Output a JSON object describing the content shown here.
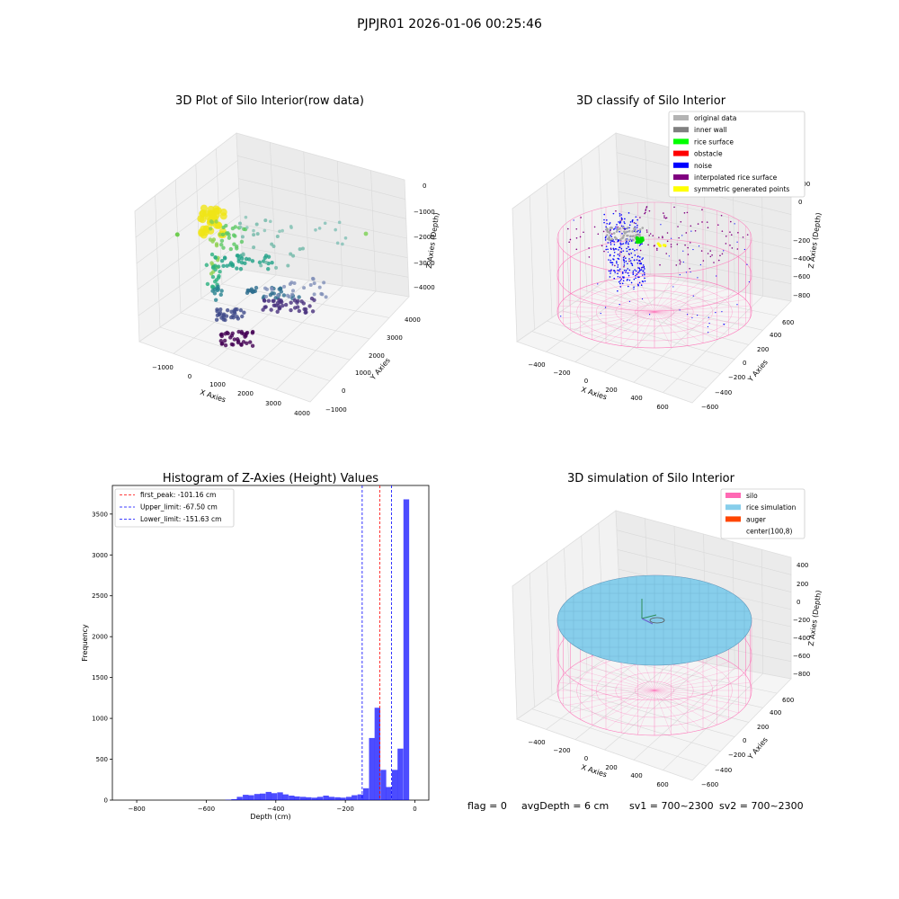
{
  "suptitle": "PJPJR01 2026-01-06 00:25:46",
  "panels": {
    "raw": {
      "title": "3D Plot of Silo Interior(row data)",
      "xlabel": "X Axies",
      "ylabel": "Y Axies",
      "zlabel": "Z Axies (Depth)",
      "xticks": [
        "−1000",
        "0",
        "1000",
        "2000",
        "3000",
        "4000"
      ],
      "yticks": [
        "−1000",
        "0",
        "1000",
        "2000",
        "3000",
        "4000"
      ],
      "zticks": [
        "0",
        "−1000",
        "−2000",
        "−3000",
        "−4000"
      ]
    },
    "classify": {
      "title": "3D classify of Silo Interior",
      "xlabel": "X Axies",
      "ylabel": "Y Axies",
      "zlabel": "Z Axies (Depth)",
      "xticks": [
        "−400",
        "−200",
        "0",
        "200",
        "400",
        "600"
      ],
      "yticks": [
        "−600",
        "−400",
        "−200",
        "0",
        "200",
        "400",
        "600"
      ],
      "zticks": [
        "200",
        "0",
        "−200",
        "−400",
        "−600",
        "−800"
      ],
      "legend": [
        {
          "label": "original data",
          "color": "#b3b3b3"
        },
        {
          "label": "inner wall",
          "color": "#808080"
        },
        {
          "label": "rice surface",
          "color": "#00ff00"
        },
        {
          "label": "obstacle",
          "color": "#ff0000"
        },
        {
          "label": "noise",
          "color": "#0000ff"
        },
        {
          "label": "interpolated rice surface",
          "color": "#800080"
        },
        {
          "label": "symmetric generated points",
          "color": "#ffff00"
        }
      ]
    },
    "simulation": {
      "title": "3D simulation of Silo Interior",
      "xlabel": "X Axies",
      "ylabel": "Y Axies",
      "zlabel": "Z Axies (Depth)",
      "xticks": [
        "−400",
        "−200",
        "0",
        "200",
        "400",
        "600"
      ],
      "yticks": [
        "−600",
        "−400",
        "−200",
        "0",
        "200",
        "400",
        "600"
      ],
      "zticks": [
        "400",
        "200",
        "0",
        "−200",
        "−400",
        "−600",
        "−800"
      ],
      "legend": [
        {
          "label": "silo",
          "color": "#ff69b4"
        },
        {
          "label": "rice simulation",
          "color": "#87ceeb"
        },
        {
          "label": "auger",
          "color": "#ff4500"
        },
        {
          "label": "center(100,8)",
          "color": "#ffffff"
        }
      ]
    }
  },
  "status": {
    "flag": "flag = 0",
    "avg_depth": "avgDepth = 6 cm",
    "sv1": "sv1 = 700~2300",
    "sv2": "sv2 = 700~2300"
  },
  "chart_data": {
    "type": "bar",
    "title": "Histogram of Z-Axies (Height) Values",
    "xlabel": "Depth (cm)",
    "ylabel": "Frequency",
    "xlim": [
      -870,
      40
    ],
    "ylim": [
      0,
      3850
    ],
    "xticks": [
      -800,
      -600,
      -400,
      -200,
      0
    ],
    "yticks": [
      0,
      500,
      1000,
      1500,
      2000,
      2500,
      3000,
      3500
    ],
    "bar_color": "#0000ff",
    "bin_width": 16.5,
    "bins": [
      {
        "x": -545,
        "value": 5
      },
      {
        "x": -528,
        "value": 12
      },
      {
        "x": -512,
        "value": 40
      },
      {
        "x": -495,
        "value": 65
      },
      {
        "x": -479,
        "value": 60
      },
      {
        "x": -462,
        "value": 75
      },
      {
        "x": -446,
        "value": 80
      },
      {
        "x": -429,
        "value": 100
      },
      {
        "x": -413,
        "value": 85
      },
      {
        "x": -396,
        "value": 95
      },
      {
        "x": -380,
        "value": 70
      },
      {
        "x": -363,
        "value": 55
      },
      {
        "x": -347,
        "value": 45
      },
      {
        "x": -330,
        "value": 40
      },
      {
        "x": -314,
        "value": 35
      },
      {
        "x": -297,
        "value": 30
      },
      {
        "x": -281,
        "value": 40
      },
      {
        "x": -264,
        "value": 55
      },
      {
        "x": -248,
        "value": 40
      },
      {
        "x": -231,
        "value": 35
      },
      {
        "x": -215,
        "value": 30
      },
      {
        "x": -198,
        "value": 40
      },
      {
        "x": -182,
        "value": 60
      },
      {
        "x": -165,
        "value": 70
      },
      {
        "x": -149,
        "value": 145
      },
      {
        "x": -132,
        "value": 760
      },
      {
        "x": -116,
        "value": 1130
      },
      {
        "x": -99,
        "value": 370
      },
      {
        "x": -83,
        "value": 160
      },
      {
        "x": -66,
        "value": 370
      },
      {
        "x": -50,
        "value": 630
      },
      {
        "x": -33,
        "value": 3680
      }
    ],
    "vlines": [
      {
        "label": "first_peak: -101.16 cm",
        "x": -101.16,
        "color": "#ff0000"
      },
      {
        "label": "Upper_limit: -67.50 cm",
        "x": -67.5,
        "color": "#0000ff"
      },
      {
        "label": "Lower_limit: -151.63 cm",
        "x": -151.63,
        "color": "#0000ff"
      }
    ]
  }
}
